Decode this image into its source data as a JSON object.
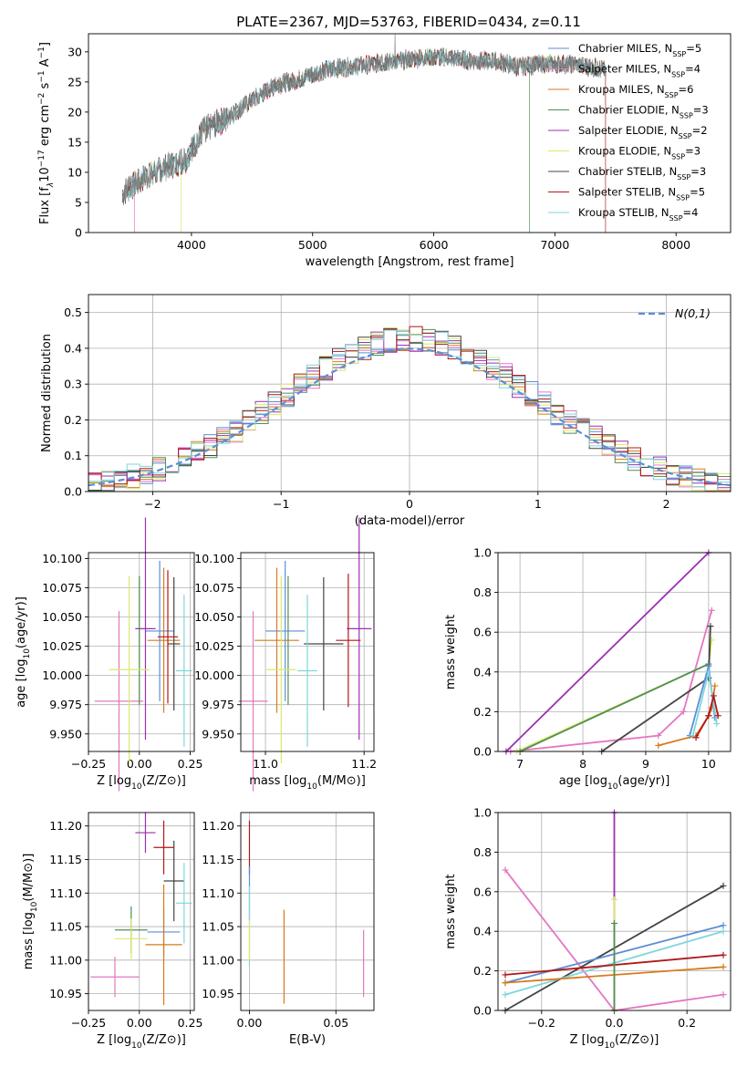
{
  "figure": {
    "title": "PLATE=2367, MJD=53763, FIBERID=0434, z=0.11"
  },
  "models": [
    {
      "name": "Chabrier MILES",
      "nssp": "5",
      "color": "#5b8ed6"
    },
    {
      "name": "Salpeter MILES",
      "nssp": "4",
      "color": "#e377c2"
    },
    {
      "name": "Kroupa MILES",
      "nssp": "6",
      "color": "#d87a1c"
    },
    {
      "name": "Chabrier ELODIE",
      "nssp": "3",
      "color": "#4f8f55"
    },
    {
      "name": "Salpeter ELODIE",
      "nssp": "2",
      "color": "#9b30b0"
    },
    {
      "name": "Kroupa ELODIE",
      "nssp": "3",
      "color": "#dbe86b"
    },
    {
      "name": "Chabrier STELIB",
      "nssp": "3",
      "color": "#444444"
    },
    {
      "name": "Salpeter STELIB",
      "nssp": "5",
      "color": "#b01818"
    },
    {
      "name": "Kroupa STELIB",
      "nssp": "4",
      "color": "#7fd6dc"
    }
  ],
  "chart_data": [
    {
      "id": "spectrum",
      "type": "line",
      "xlabel": "wavelength [Angstrom, rest frame]",
      "ylabel": "Flux [f_λ10^-17 erg cm^-2 s^-1 A^-1]",
      "xlim": [
        3150,
        8450
      ],
      "ylim": [
        0,
        33
      ],
      "xticks": [
        "4000",
        "5000",
        "6000",
        "7000",
        "8000"
      ],
      "yticks": [
        "0",
        "5",
        "10",
        "15",
        "20",
        "25",
        "30"
      ],
      "legend_label_suffix": "N",
      "legend_label_sub": "SSP",
      "legend_placement": "top-right",
      "grid": false,
      "continuum_knots": [
        [
          3430,
          6.5
        ],
        [
          3600,
          9
        ],
        [
          3800,
          11
        ],
        [
          3950,
          12
        ],
        [
          4100,
          17
        ],
        [
          4300,
          19
        ],
        [
          4500,
          22
        ],
        [
          4700,
          24.5
        ],
        [
          4900,
          25.5
        ],
        [
          5100,
          27
        ],
        [
          5300,
          27.5
        ],
        [
          5500,
          28
        ],
        [
          5700,
          28.5
        ],
        [
          5900,
          29
        ],
        [
          6100,
          29.2
        ],
        [
          6300,
          28.5
        ],
        [
          6500,
          28.5
        ],
        [
          6700,
          27.5
        ],
        [
          6900,
          28
        ],
        [
          7100,
          28
        ],
        [
          7300,
          27.5
        ],
        [
          7420,
          27
        ]
      ],
      "model_end_wavelength": 7420,
      "dropouts": [
        {
          "model": "Salpeter MILES",
          "x": 3530
        },
        {
          "model": "Kroupa ELODIE",
          "x": 3915
        },
        {
          "model": "Chabrier ELODIE",
          "x": 6790
        },
        {
          "model": "Salpeter STELIB",
          "x": 7420
        }
      ]
    },
    {
      "id": "residual_hist",
      "type": "bar",
      "xlabel": "(data-model)/error",
      "ylabel": "Normed distribution",
      "xlim": [
        -2.5,
        2.5
      ],
      "ylim": [
        0,
        0.55
      ],
      "xticks": [
        "-2",
        "-1",
        "0",
        "1",
        "2"
      ],
      "yticks": [
        "0.0",
        "0.1",
        "0.2",
        "0.3",
        "0.4",
        "0.5"
      ],
      "grid": true,
      "legend_placement": "top-right",
      "reference_label": "N(0,1)",
      "reference_color": "#5b8ed6",
      "bin_width": 0.1
    },
    {
      "id": "age_vs_Z",
      "type": "scatter",
      "xlabel": "Z [log10(Z/Z⊙)]",
      "ylabel": "age [log10(age/yr)]",
      "xlim": [
        -0.25,
        0.27
      ],
      "ylim": [
        9.935,
        10.105
      ],
      "xticks": [
        "-0.25",
        "0.00",
        "0.25"
      ],
      "yticks": [
        "9.950",
        "9.975",
        "10.000",
        "10.025",
        "10.050",
        "10.075",
        "10.100"
      ],
      "grid": true,
      "points": [
        {
          "model": "Chabrier MILES",
          "x": 0.1,
          "xerr": 0.07,
          "y": 10.038,
          "yerr": 0.06
        },
        {
          "model": "Salpeter MILES",
          "x": -0.1,
          "xerr": 0.12,
          "y": 9.978,
          "yerr": 0.077
        },
        {
          "model": "Kroupa MILES",
          "x": 0.12,
          "xerr": 0.08,
          "y": 10.03,
          "yerr": 0.062
        },
        {
          "model": "Chabrier ELODIE",
          "x": 0.0,
          "xerr": 0.0,
          "y": 10.03,
          "yerr": 0.055
        },
        {
          "model": "Salpeter ELODIE",
          "x": 0.03,
          "xerr": 0.05,
          "y": 10.04,
          "yerr": 0.095
        },
        {
          "model": "Kroupa ELODIE",
          "x": -0.05,
          "xerr": 0.1,
          "y": 10.005,
          "yerr": 0.08
        },
        {
          "model": "Chabrier STELIB",
          "x": 0.17,
          "xerr": 0.03,
          "y": 10.027,
          "yerr": 0.057
        },
        {
          "model": "Salpeter STELIB",
          "x": 0.14,
          "xerr": 0.05,
          "y": 10.033,
          "yerr": 0.057
        },
        {
          "model": "Kroupa STELIB",
          "x": 0.22,
          "xerr": 0.04,
          "y": 10.004,
          "yerr": 0.065
        }
      ]
    },
    {
      "id": "age_vs_mass",
      "type": "scatter",
      "xlabel": "mass [log10(M/M⊙)]",
      "xlim": [
        10.95,
        11.22
      ],
      "ylim": [
        9.935,
        10.105
      ],
      "xticks": [
        "11.0",
        "11.2"
      ],
      "yticks": [
        "9.950",
        "9.975",
        "10.000",
        "10.025",
        "10.050",
        "10.075",
        "10.100"
      ],
      "grid": true,
      "points": [
        {
          "model": "Chabrier MILES",
          "x": 11.04,
          "xerr": 0.04,
          "y": 10.038,
          "yerr": 0.06
        },
        {
          "model": "Salpeter MILES",
          "x": 10.975,
          "xerr": 0.03,
          "y": 9.978,
          "yerr": 0.077
        },
        {
          "model": "Kroupa MILES",
          "x": 11.023,
          "xerr": 0.045,
          "y": 10.03,
          "yerr": 0.062
        },
        {
          "model": "Chabrier ELODIE",
          "x": 11.046,
          "xerr": 0.0,
          "y": 10.03,
          "yerr": 0.055
        },
        {
          "model": "Salpeter ELODIE",
          "x": 11.19,
          "xerr": 0.025,
          "y": 10.04,
          "yerr": 0.095
        },
        {
          "model": "Kroupa ELODIE",
          "x": 11.032,
          "xerr": 0.03,
          "y": 10.005,
          "yerr": 0.08
        },
        {
          "model": "Chabrier STELIB",
          "x": 11.118,
          "xerr": 0.04,
          "y": 10.027,
          "yerr": 0.057
        },
        {
          "model": "Salpeter STELIB",
          "x": 11.168,
          "xerr": 0.025,
          "y": 10.03,
          "yerr": 0.057
        },
        {
          "model": "Kroupa STELIB",
          "x": 11.085,
          "xerr": 0.02,
          "y": 10.004,
          "yerr": 0.065
        }
      ]
    },
    {
      "id": "massweight_vs_age",
      "type": "line",
      "xlabel": "age [log10(age/yr)]",
      "ylabel": "mass weight",
      "xlim": [
        6.65,
        10.35
      ],
      "ylim": [
        0,
        1
      ],
      "xticks": [
        "7",
        "8",
        "9",
        "10"
      ],
      "yticks": [
        "0.0",
        "0.2",
        "0.4",
        "0.6",
        "0.8",
        "1.0"
      ],
      "grid": true,
      "series": [
        {
          "model": "Salpeter ELODIE",
          "points": [
            [
              6.78,
              0.0
            ],
            [
              10.0,
              1.0
            ]
          ]
        },
        {
          "model": "Salpeter MILES",
          "points": [
            [
              6.85,
              0.0
            ],
            [
              9.2,
              0.08
            ],
            [
              9.6,
              0.2
            ],
            [
              10.05,
              0.71
            ]
          ]
        },
        {
          "model": "Kroupa ELODIE",
          "points": [
            [
              6.95,
              0.0
            ],
            [
              10.0,
              0.44
            ],
            [
              10.05,
              0.56
            ]
          ]
        },
        {
          "model": "Chabrier ELODIE",
          "points": [
            [
              7.0,
              0.0
            ],
            [
              10.0,
              0.44
            ]
          ]
        },
        {
          "model": "Chabrier STELIB",
          "points": [
            [
              8.3,
              0.0
            ],
            [
              10.0,
              0.37
            ],
            [
              10.03,
              0.63
            ]
          ]
        },
        {
          "model": "Kroupa MILES",
          "points": [
            [
              9.2,
              0.03
            ],
            [
              9.8,
              0.08
            ],
            [
              10.0,
              0.18
            ],
            [
              10.05,
              0.22
            ],
            [
              10.1,
              0.33
            ]
          ]
        },
        {
          "model": "Chabrier MILES",
          "points": [
            [
              9.7,
              0.08
            ],
            [
              10.0,
              0.43
            ],
            [
              10.1,
              0.17
            ]
          ]
        },
        {
          "model": "Kroupa STELIB",
          "points": [
            [
              9.75,
              0.08
            ],
            [
              10.0,
              0.4
            ],
            [
              10.13,
              0.14
            ]
          ]
        },
        {
          "model": "Salpeter STELIB",
          "points": [
            [
              9.8,
              0.07
            ],
            [
              10.0,
              0.18
            ],
            [
              10.08,
              0.28
            ],
            [
              10.15,
              0.18
            ]
          ]
        }
      ]
    },
    {
      "id": "mass_vs_Z",
      "type": "scatter",
      "xlabel": "Z [log10(Z/Z⊙)]",
      "ylabel": "mass [log10(M/M⊙)]",
      "xlim": [
        -0.25,
        0.27
      ],
      "ylim": [
        10.925,
        11.22
      ],
      "xticks": [
        "-0.25",
        "0.00",
        "0.25"
      ],
      "yticks": [
        "10.95",
        "11.00",
        "11.05",
        "11.10",
        "11.15",
        "11.20"
      ],
      "grid": true,
      "points": [
        {
          "model": "Chabrier MILES",
          "x": 0.12,
          "xerr": 0.08,
          "y": 11.042,
          "yerr": 0.035
        },
        {
          "model": "Salpeter MILES",
          "x": -0.12,
          "xerr": 0.12,
          "y": 10.975,
          "yerr": 0.03
        },
        {
          "model": "Kroupa MILES",
          "x": 0.12,
          "xerr": 0.09,
          "y": 11.023,
          "yerr": 0.09
        },
        {
          "model": "Chabrier ELODIE",
          "x": -0.04,
          "xerr": 0.08,
          "y": 11.045,
          "yerr": 0.035
        },
        {
          "model": "Salpeter ELODIE",
          "x": 0.03,
          "xerr": 0.05,
          "y": 11.19,
          "yerr": 0.03
        },
        {
          "model": "Kroupa ELODIE",
          "x": -0.04,
          "xerr": 0.08,
          "y": 11.032,
          "yerr": 0.03
        },
        {
          "model": "Chabrier STELIB",
          "x": 0.17,
          "xerr": 0.05,
          "y": 11.118,
          "yerr": 0.06
        },
        {
          "model": "Salpeter STELIB",
          "x": 0.12,
          "xerr": 0.05,
          "y": 11.168,
          "yerr": 0.04
        },
        {
          "model": "Kroupa STELIB",
          "x": 0.22,
          "xerr": 0.04,
          "y": 11.085,
          "yerr": 0.06
        }
      ]
    },
    {
      "id": "mass_vs_ebv",
      "type": "scatter",
      "xlabel": "E(B-V)",
      "xlim": [
        -0.005,
        0.072
      ],
      "ylim": [
        10.925,
        11.22
      ],
      "xticks": [
        "0.00",
        "0.05"
      ],
      "yticks": [
        "10.95",
        "11.00",
        "11.05",
        "11.10",
        "11.15",
        "11.20"
      ],
      "grid": true,
      "points": [
        {
          "model": "Salpeter STELIB",
          "x": 0.0,
          "y": 11.168,
          "yerr": 0.04
        },
        {
          "model": "Chabrier MILES",
          "x": 0.0,
          "y": 11.1,
          "yerr": 0.04
        },
        {
          "model": "Kroupa STELIB",
          "x": 0.0,
          "y": 11.05,
          "yerr": 0.06
        },
        {
          "model": "Kroupa ELODIE",
          "x": 0.0,
          "y": 11.03,
          "yerr": 0.03
        },
        {
          "model": "Kroupa MILES",
          "x": 0.02,
          "y": 11.005,
          "yerr": 0.07
        },
        {
          "model": "Salpeter MILES",
          "x": 0.066,
          "y": 10.995,
          "yerr": 0.05
        }
      ]
    },
    {
      "id": "massweight_vs_Z",
      "type": "line",
      "xlabel": "Z [log10(Z/Z⊙)]",
      "ylabel": "mass weight",
      "xlim": [
        -0.32,
        0.32
      ],
      "ylim": [
        0,
        1
      ],
      "xticks": [
        "-0.2",
        "0.0",
        "0.2"
      ],
      "yticks": [
        "0.0",
        "0.2",
        "0.4",
        "0.6",
        "0.8",
        "1.0"
      ],
      "grid": true,
      "series": [
        {
          "model": "Salpeter MILES",
          "points": [
            [
              -0.3,
              0.71
            ],
            [
              0.0,
              0.0
            ],
            [
              0.3,
              0.08
            ]
          ]
        },
        {
          "model": "Chabrier STELIB",
          "points": [
            [
              -0.3,
              0.0
            ],
            [
              0.3,
              0.63
            ]
          ]
        },
        {
          "model": "Chabrier MILES",
          "points": [
            [
              -0.3,
              0.14
            ],
            [
              0.3,
              0.43
            ]
          ]
        },
        {
          "model": "Kroupa STELIB",
          "points": [
            [
              -0.3,
              0.08
            ],
            [
              0.3,
              0.4
            ]
          ]
        },
        {
          "model": "Salpeter STELIB",
          "points": [
            [
              -0.3,
              0.18
            ],
            [
              0.3,
              0.28
            ]
          ]
        },
        {
          "model": "Kroupa MILES",
          "points": [
            [
              -0.3,
              0.14
            ],
            [
              0.3,
              0.22
            ]
          ]
        },
        {
          "model": "Salpeter ELODIE",
          "points": [
            [
              0.0,
              0.0
            ],
            [
              0.0,
              1.0
            ]
          ]
        },
        {
          "model": "Kroupa ELODIE",
          "points": [
            [
              0.0,
              0.0
            ],
            [
              0.0,
              0.56
            ]
          ]
        },
        {
          "model": "Chabrier ELODIE",
          "points": [
            [
              0.0,
              0.0
            ],
            [
              0.0,
              0.44
            ]
          ]
        }
      ]
    }
  ]
}
